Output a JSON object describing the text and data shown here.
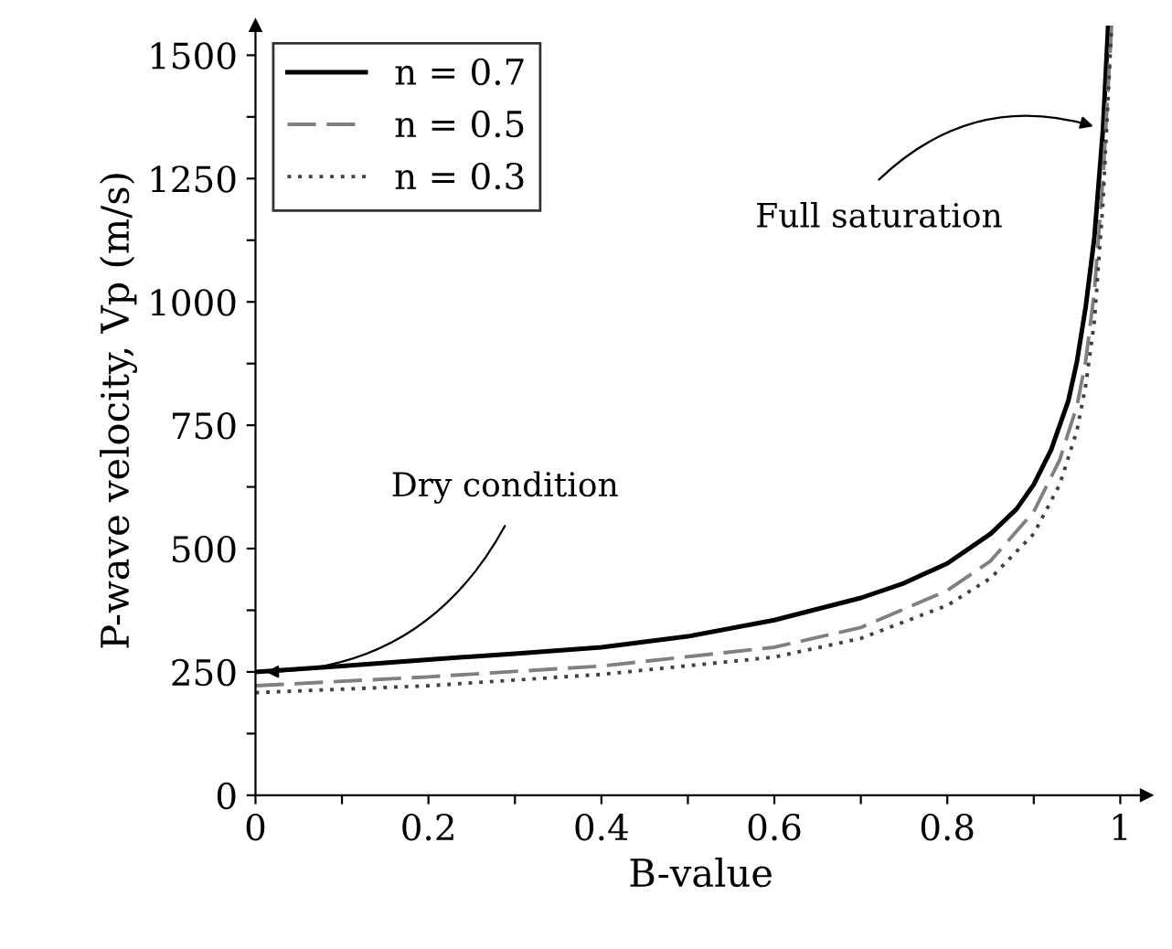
{
  "chart_data": {
    "type": "line",
    "xlabel": "B-value",
    "ylabel": "P-wave velocity, Vp (m/s)",
    "xlim": [
      0,
      1.03
    ],
    "ylim": [
      0,
      1560
    ],
    "xticks": [
      0,
      {
        "value": 0.1,
        "label": null
      },
      0.2,
      {
        "value": 0.3,
        "label": null
      },
      0.4,
      {
        "value": 0.5,
        "label": null
      },
      0.6,
      {
        "value": 0.7,
        "label": null
      },
      0.8,
      {
        "value": 0.9,
        "label": null
      },
      1
    ],
    "yticks": [
      0,
      {
        "value": 125,
        "label": null
      },
      250,
      {
        "value": 375,
        "label": null
      },
      500,
      {
        "value": 625,
        "label": null
      },
      750,
      {
        "value": 875,
        "label": null
      },
      1000,
      {
        "value": 1125,
        "label": null
      },
      1250,
      {
        "value": 1375,
        "label": null
      },
      1500
    ],
    "grid": false,
    "legend": "top left",
    "marker": "none",
    "series": [
      {
        "name": "n = 0.7",
        "color": "#000000",
        "line_style": "solid",
        "x": [
          0,
          0.1,
          0.2,
          0.3,
          0.4,
          0.5,
          0.6,
          0.7,
          0.75,
          0.8,
          0.85,
          0.88,
          0.9,
          0.92,
          0.94,
          0.95,
          0.96,
          0.97,
          0.98,
          0.986
        ],
        "values": [
          250,
          262,
          275,
          287,
          300,
          322,
          355,
          400,
          430,
          470,
          530,
          580,
          630,
          700,
          800,
          880,
          990,
          1130,
          1350,
          1560
        ]
      },
      {
        "name": "n = 0.5",
        "color": "#808080",
        "line_style": "dashed",
        "x": [
          0,
          0.2,
          0.4,
          0.6,
          0.7,
          0.8,
          0.85,
          0.9,
          0.93,
          0.95,
          0.96,
          0.97,
          0.98,
          0.99
        ],
        "values": [
          222,
          240,
          262,
          300,
          340,
          415,
          475,
          575,
          680,
          790,
          880,
          1020,
          1250,
          1560
        ]
      },
      {
        "name": "n = 0.3",
        "color": "#404040",
        "line_style": "dotted",
        "x": [
          0,
          0.2,
          0.4,
          0.6,
          0.7,
          0.8,
          0.85,
          0.9,
          0.93,
          0.95,
          0.96,
          0.97,
          0.98,
          0.99
        ],
        "values": [
          208,
          222,
          245,
          280,
          318,
          385,
          440,
          530,
          630,
          740,
          830,
          960,
          1200,
          1560
        ]
      }
    ],
    "annotations": [
      {
        "text": "Dry condition",
        "x": 0,
        "y": 250
      },
      {
        "text": "Full saturation",
        "x": 0.98,
        "y": 1350
      }
    ]
  }
}
